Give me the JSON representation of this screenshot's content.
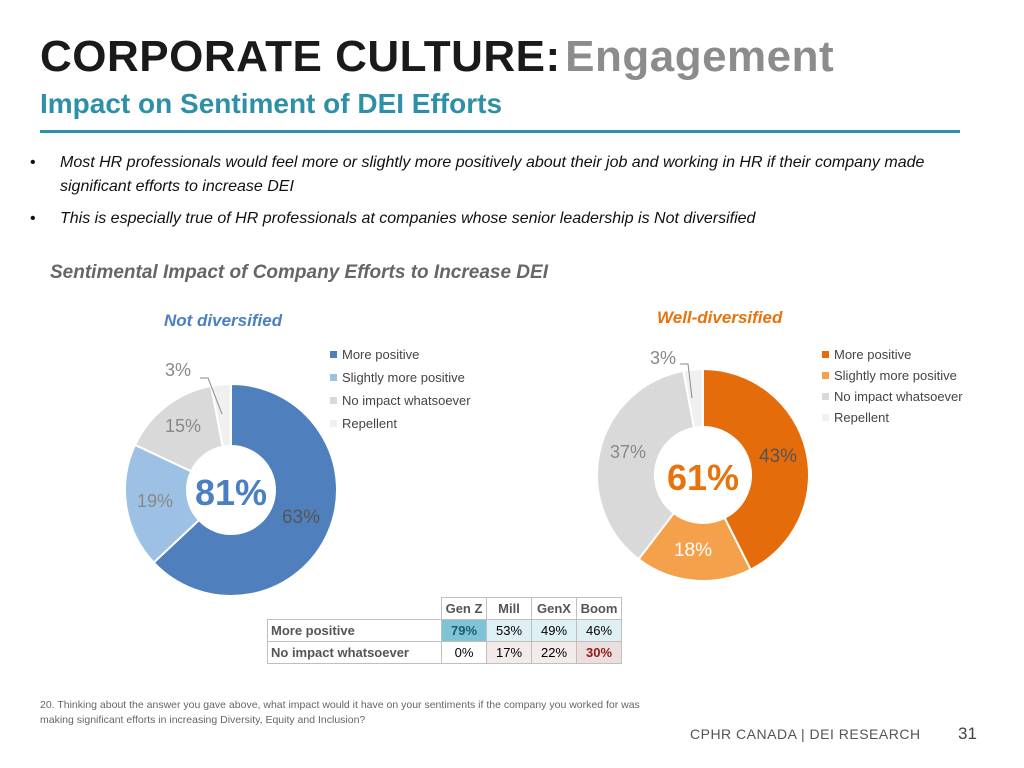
{
  "header": {
    "title_main": "CORPORATE CULTURE:",
    "title_accent": "Engagement",
    "subtitle": "Impact on Sentiment of DEI Efforts"
  },
  "bullets": [
    {
      "marker": "•",
      "text": "Most HR professionals would feel more or slightly more positively about their job and working in HR if their company made significant efforts to increase DEI"
    },
    {
      "marker": "•",
      "text": "This is especially true of HR professionals at companies whose senior leadership is Not diversified"
    }
  ],
  "section_title": "Sentimental Impact of Company Efforts to Increase DEI",
  "colors": {
    "title_blue": "#2e8fa8",
    "not_div_label": "#4a7fc1",
    "well_div_label": "#e8730c"
  },
  "chart_data": [
    {
      "type": "pie",
      "style": "donut",
      "title": "Not diversified",
      "center_label": "81%",
      "categories": [
        "More positive",
        "Slightly more positive",
        "No impact whatsoever",
        "Repellent"
      ],
      "values": [
        63,
        19,
        15,
        3
      ],
      "value_labels": [
        "63%",
        "19%",
        "15%",
        "3%"
      ],
      "colors": [
        "#4f80bd",
        "#9dc1e5",
        "#d9d9d9",
        "#f0f0f0"
      ],
      "legend": [
        "More positive",
        "Slightly more positive",
        "No impact whatsoever",
        "Repellent"
      ]
    },
    {
      "type": "pie",
      "style": "donut",
      "title": "Well-diversified",
      "center_label": "61%",
      "categories": [
        "More positive",
        "Slightly more positive",
        "No impact whatsoever",
        "Repellent"
      ],
      "values": [
        43,
        18,
        37,
        3
      ],
      "value_labels": [
        "43%",
        "18%",
        "37%",
        "3%"
      ],
      "colors": [
        "#e46c0a",
        "#f5a14c",
        "#d9d9d9",
        "#f0f0f0"
      ],
      "legend": [
        "More positive",
        "Slightly more positive",
        "No impact whatsoever",
        "Repellent"
      ]
    },
    {
      "type": "table",
      "columns": [
        "Gen Z",
        "Mill",
        "GenX",
        "Boom"
      ],
      "rows": [
        {
          "label": "More positive",
          "values": [
            "79%",
            "53%",
            "49%",
            "46%"
          ],
          "highlight": [
            true,
            false,
            false,
            false
          ]
        },
        {
          "label": "No impact whatsoever",
          "values": [
            "0%",
            "17%",
            "22%",
            "30%"
          ],
          "highlight": [
            false,
            false,
            false,
            true
          ]
        }
      ]
    }
  ],
  "footnote": "20. Thinking about the answer you gave above, what impact would it have on your sentiments if the company you worked for was making significant efforts in increasing Diversity, Equity and Inclusion?",
  "footer": {
    "brand": "CPHR CANADA | DEI RESEARCH",
    "page": "31"
  }
}
